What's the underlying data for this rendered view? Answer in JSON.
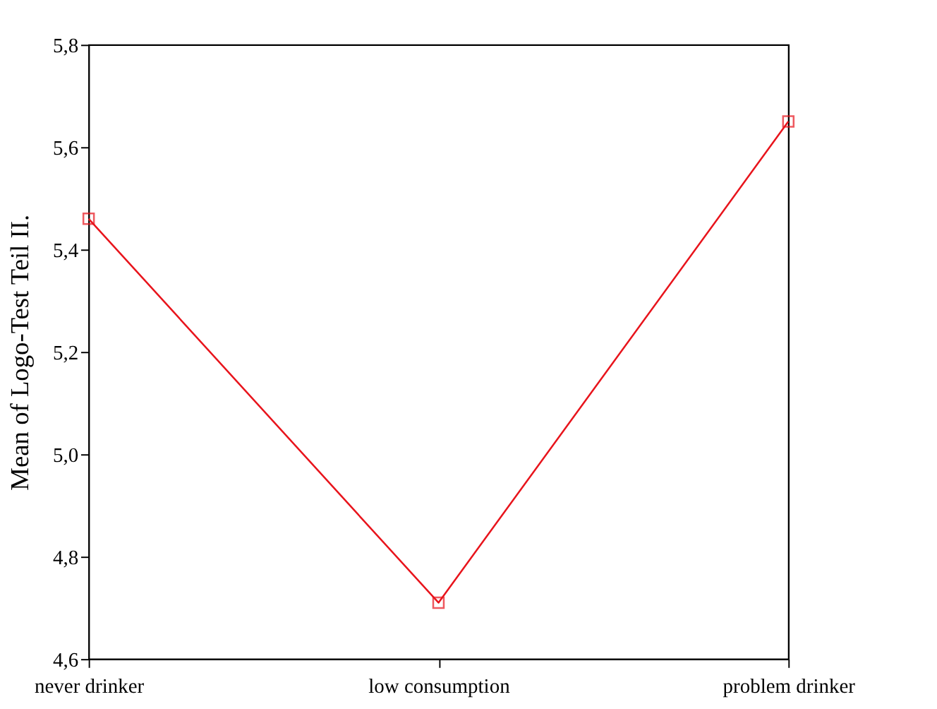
{
  "chart_data": {
    "type": "line",
    "ylabel": "Mean of Logo-Test Teil II.",
    "categories": [
      "never drinker",
      "low consumption",
      "problem drinker"
    ],
    "series": [
      {
        "color": "#e8141c",
        "values": [
          5.46,
          4.71,
          5.65
        ]
      }
    ],
    "ylim": [
      4.6,
      5.8
    ],
    "yticks": [
      {
        "value": 4.6,
        "label": "4,6"
      },
      {
        "value": 4.8,
        "label": "4,8"
      },
      {
        "value": 5.0,
        "label": "5,0"
      },
      {
        "value": 5.2,
        "label": "5,2"
      },
      {
        "value": 5.4,
        "label": "5,4"
      },
      {
        "value": 5.6,
        "label": "5,6"
      },
      {
        "value": 5.8,
        "label": "5,8"
      }
    ],
    "marker": "square",
    "line_style": "solid",
    "grid": false
  }
}
